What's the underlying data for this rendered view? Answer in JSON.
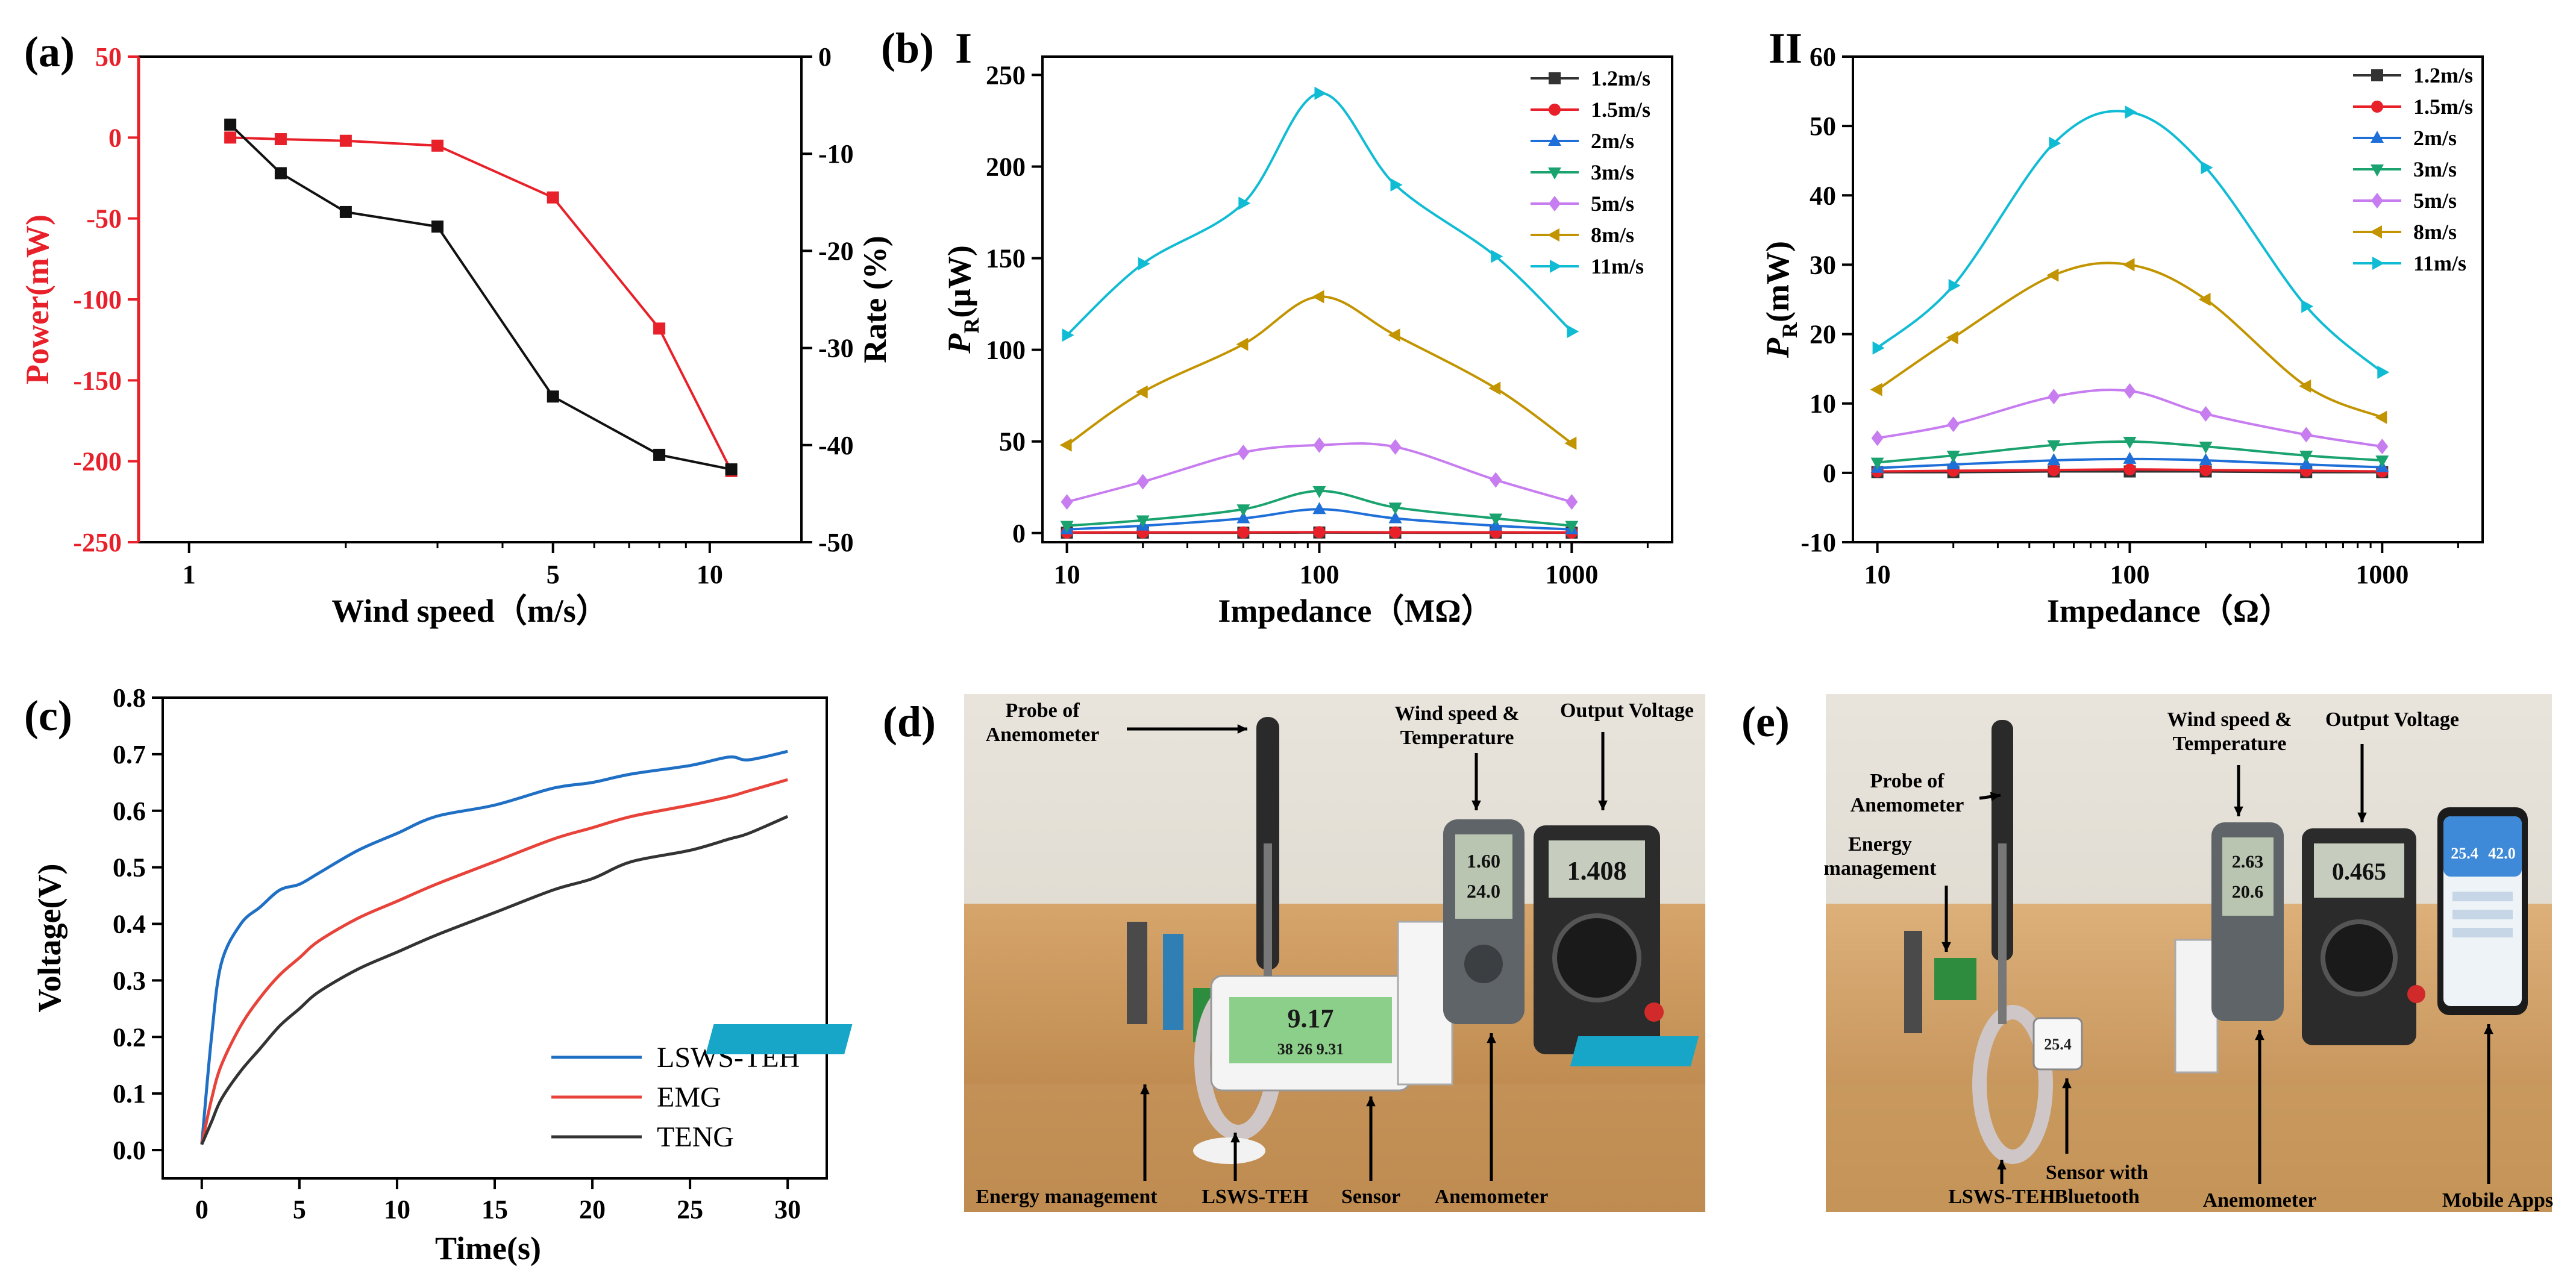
{
  "panels": {
    "a": {
      "label": "(a)",
      "xlabel": "Wind speed（m/s）",
      "ylabel_left": "Power(mW)",
      "ylabel_right": "Rate (%)"
    },
    "b": {
      "label": "(b)",
      "sublabel_I": "I",
      "sublabel_II": "II",
      "xlabel_I": "Impedance（MΩ）",
      "ylabel_I": "PR(μW)",
      "xlabel_II": "Impedance（Ω）",
      "ylabel_II": "PR(mW)"
    },
    "c": {
      "label": "(c)",
      "xlabel": "Time(s)",
      "ylabel": "Voltage(V)"
    },
    "d": {
      "label": "(d)",
      "annotations": [
        "Probe of Anemometer",
        "Wind speed & Temperature",
        "Output Voltage",
        "Energy management",
        "LSWS-TEH",
        "Sensor",
        "Anemometer"
      ],
      "display_big": "9.17",
      "display_small": "38 26 9.31",
      "anemometer_screen": [
        "1.60",
        "24.0"
      ],
      "multimeter_screen": "1.408"
    },
    "e": {
      "label": "(e)",
      "annotations": [
        "Probe of Anemometer",
        "Energy management",
        "Wind speed & Temperature",
        "Output Voltage",
        "LSWS-TEH",
        "Sensor with Bluetooth",
        "Anemometer",
        "Mobile Apps"
      ],
      "sensor_screen": "25.4",
      "anemometer_screen": [
        "2.63",
        "20.6"
      ],
      "multimeter_screen": "0.465",
      "phone_values": [
        "25.4",
        "42.0"
      ]
    }
  },
  "chart_data": [
    {
      "panel": "a",
      "type": "line",
      "xscale": "log",
      "xlabel": "Wind speed（m/s）",
      "ylabel": "Power(mW)",
      "y2label": "Rate (%)",
      "xlim": [
        0.8,
        15
      ],
      "ylim": [
        -250,
        50
      ],
      "y2lim": [
        -50,
        0
      ],
      "xticks": [
        1,
        5,
        10
      ],
      "yticks": [
        50,
        0,
        -50,
        -100,
        -150,
        -200,
        -250
      ],
      "y2ticks": [
        0,
        -10,
        -20,
        -30,
        -40,
        -50
      ],
      "series": [
        {
          "axis": "left",
          "color": "#e8202a",
          "marker": "square",
          "x": [
            1.2,
            1.5,
            2,
            3,
            5,
            8,
            11
          ],
          "y": [
            0,
            -1,
            -2,
            -5,
            -37,
            -118,
            -206
          ]
        },
        {
          "axis": "right",
          "color": "#111111",
          "marker": "square",
          "x": [
            1.2,
            1.5,
            2,
            3,
            5,
            8,
            11
          ],
          "y": [
            -7,
            -12,
            -16,
            -17.5,
            -35,
            -41,
            -42.5
          ]
        }
      ]
    },
    {
      "panel": "b-I",
      "type": "line",
      "xscale": "log",
      "xlabel": "Impedance（MΩ）",
      "ylabel": "PR(μW)",
      "xlim": [
        8,
        2500
      ],
      "ylim": [
        -5,
        260
      ],
      "xticks": [
        10,
        100,
        1000
      ],
      "yticks": [
        0,
        50,
        100,
        150,
        200,
        250
      ],
      "x": [
        10,
        20,
        50,
        100,
        200,
        500,
        1000
      ],
      "series": [
        {
          "name": "1.2m/s",
          "color": "#333333",
          "marker": "square",
          "values": [
            0.2,
            0.2,
            0.2,
            0.3,
            0.2,
            0.2,
            0.2
          ]
        },
        {
          "name": "1.5m/s",
          "color": "#e8202a",
          "marker": "circle",
          "values": [
            0.3,
            0.4,
            0.4,
            0.5,
            0.4,
            0.4,
            0.3
          ]
        },
        {
          "name": "2m/s",
          "color": "#1f6fd8",
          "marker": "triangle-up",
          "values": [
            2,
            4,
            8,
            13,
            8,
            4,
            2
          ]
        },
        {
          "name": "3m/s",
          "color": "#1aa36f",
          "marker": "triangle-down",
          "values": [
            4,
            7,
            13,
            23,
            14,
            8,
            4
          ]
        },
        {
          "name": "5m/s",
          "color": "#c77cf0",
          "marker": "diamond",
          "values": [
            17,
            28,
            44,
            48,
            47,
            29,
            17
          ]
        },
        {
          "name": "8m/s",
          "color": "#c29400",
          "marker": "triangle-left",
          "values": [
            48,
            77,
            103,
            129,
            108,
            79,
            49
          ]
        },
        {
          "name": "11m/s",
          "color": "#10bcd4",
          "marker": "triangle-right",
          "values": [
            108,
            147,
            180,
            240,
            190,
            151,
            110
          ]
        }
      ]
    },
    {
      "panel": "b-II",
      "type": "line",
      "xscale": "log",
      "xlabel": "Impedance（Ω）",
      "ylabel": "PR(mW)",
      "xlim": [
        8,
        2500
      ],
      "ylim": [
        -10,
        60
      ],
      "xticks": [
        10,
        100,
        1000
      ],
      "yticks": [
        -10,
        0,
        10,
        20,
        30,
        40,
        50,
        60
      ],
      "x": [
        10,
        20,
        50,
        100,
        200,
        500,
        1000
      ],
      "series": [
        {
          "name": "1.2m/s",
          "color": "#333333",
          "marker": "square",
          "values": [
            0.1,
            0.1,
            0.2,
            0.2,
            0.2,
            0.1,
            0.1
          ]
        },
        {
          "name": "1.5m/s",
          "color": "#e8202a",
          "marker": "circle",
          "values": [
            0.2,
            0.3,
            0.4,
            0.5,
            0.4,
            0.3,
            0.2
          ]
        },
        {
          "name": "2m/s",
          "color": "#1f6fd8",
          "marker": "triangle-up",
          "values": [
            0.7,
            1.2,
            1.8,
            2,
            1.8,
            1.2,
            0.8
          ]
        },
        {
          "name": "3m/s",
          "color": "#1aa36f",
          "marker": "triangle-down",
          "values": [
            1.5,
            2.5,
            4,
            4.5,
            3.8,
            2.5,
            1.8
          ]
        },
        {
          "name": "5m/s",
          "color": "#c77cf0",
          "marker": "diamond",
          "values": [
            5,
            7,
            11,
            11.8,
            8.5,
            5.5,
            3.8
          ]
        },
        {
          "name": "8m/s",
          "color": "#c29400",
          "marker": "triangle-left",
          "values": [
            12,
            19.5,
            28.5,
            30,
            25,
            12.5,
            8
          ]
        },
        {
          "name": "11m/s",
          "color": "#10bcd4",
          "marker": "triangle-right",
          "values": [
            18,
            27,
            47.5,
            52,
            44,
            24,
            14.5
          ]
        }
      ]
    },
    {
      "panel": "c",
      "type": "line",
      "xlabel": "Time(s)",
      "ylabel": "Voltage(V)",
      "xlim": [
        -2,
        32
      ],
      "ylim": [
        -0.05,
        0.8
      ],
      "xticks": [
        0,
        5,
        10,
        15,
        20,
        25,
        30
      ],
      "yticks": [
        0.0,
        0.1,
        0.2,
        0.3,
        0.4,
        0.5,
        0.6,
        0.7,
        0.8
      ],
      "legend": "bottom-right",
      "x": [
        0,
        0.5,
        1,
        2,
        3,
        4,
        5,
        6,
        8,
        10,
        12,
        15,
        18,
        20,
        22,
        25,
        27,
        28,
        30
      ],
      "series": [
        {
          "name": "LSWS-TEH",
          "color": "#1f6fc4",
          "values": [
            0.01,
            0.2,
            0.33,
            0.4,
            0.43,
            0.46,
            0.47,
            0.49,
            0.53,
            0.56,
            0.59,
            0.61,
            0.64,
            0.65,
            0.665,
            0.68,
            0.695,
            0.69,
            0.705
          ]
        },
        {
          "name": "EMG",
          "color": "#e8433a",
          "values": [
            0.01,
            0.09,
            0.15,
            0.22,
            0.27,
            0.31,
            0.34,
            0.37,
            0.41,
            0.44,
            0.47,
            0.51,
            0.55,
            0.57,
            0.59,
            0.61,
            0.625,
            0.635,
            0.655
          ]
        },
        {
          "name": "TENG",
          "color": "#333333",
          "values": [
            0.01,
            0.05,
            0.09,
            0.14,
            0.18,
            0.22,
            0.25,
            0.28,
            0.32,
            0.35,
            0.38,
            0.42,
            0.46,
            0.48,
            0.51,
            0.53,
            0.55,
            0.56,
            0.59
          ]
        }
      ]
    }
  ]
}
